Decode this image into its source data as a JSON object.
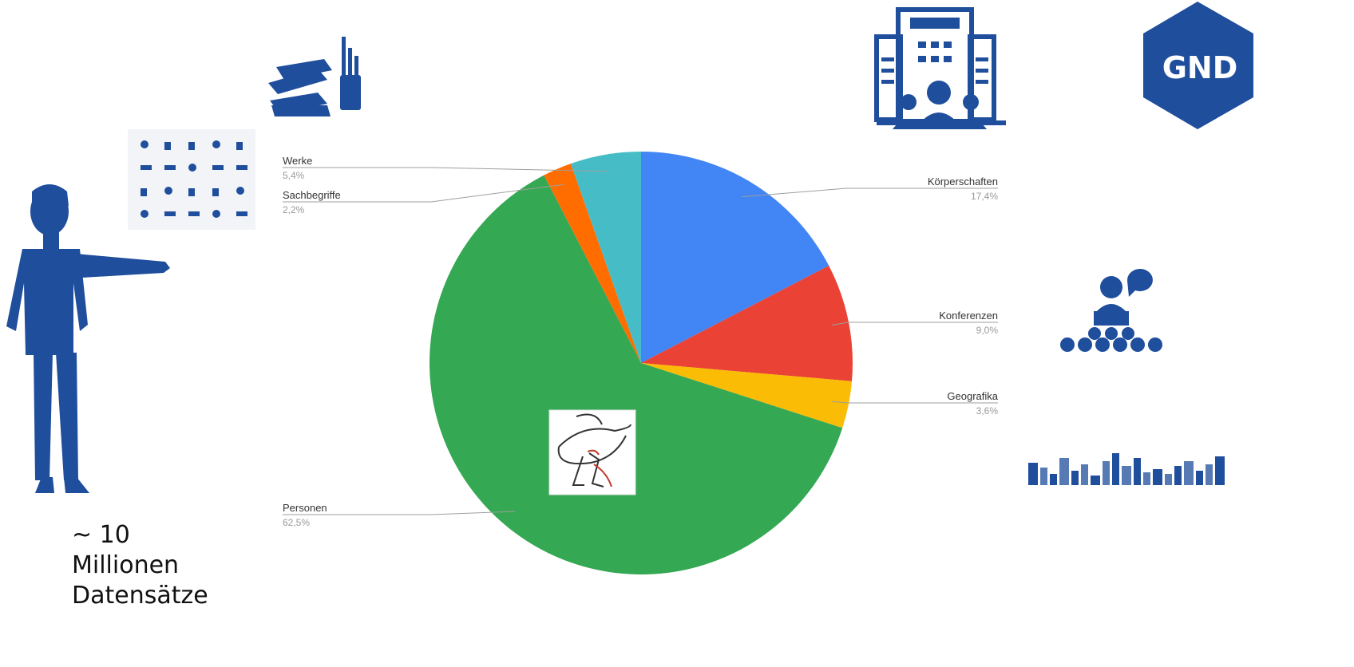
{
  "logo": {
    "text": "GND"
  },
  "caption": {
    "line1": "~ 10",
    "line2": "Millionen",
    "line3": "Datensätze"
  },
  "colors": {
    "icon_blue": "#1f4e9c"
  },
  "chart_data": {
    "type": "pie",
    "start_angle_deg": 0,
    "direction": "clockwise",
    "slices": [
      {
        "label": "Körperschaften",
        "value": 17.4,
        "pct_text": "17,4%",
        "color": "#4285f4",
        "label_side": "right"
      },
      {
        "label": "Konferenzen",
        "value": 9.0,
        "pct_text": "9,0%",
        "color": "#ea4335",
        "label_side": "right"
      },
      {
        "label": "Geografika",
        "value": 3.6,
        "pct_text": "3,6%",
        "color": "#fbbc05",
        "label_side": "right"
      },
      {
        "label": "Personen",
        "value": 62.5,
        "pct_text": "62,5%",
        "color": "#34a853",
        "label_side": "left"
      },
      {
        "label": "Sachbegriffe",
        "value": 2.2,
        "pct_text": "2,2%",
        "color": "#ff6d01",
        "label_side": "left"
      },
      {
        "label": "Werke",
        "value": 5.4,
        "pct_text": "5,4%",
        "color": "#46bdc6",
        "label_side": "left"
      }
    ]
  }
}
